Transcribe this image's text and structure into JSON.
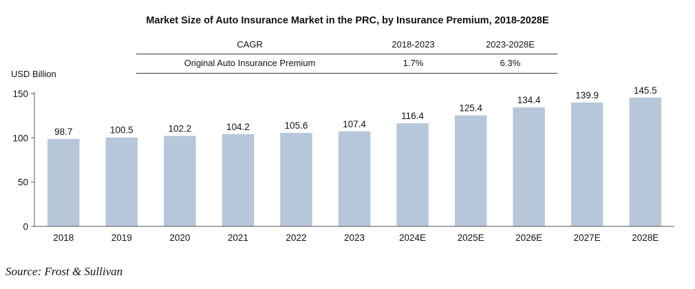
{
  "colors": {
    "bar": "#b7c7da",
    "axis": "#555555",
    "text": "#111111"
  },
  "source": "Source: Frost & Sullivan",
  "cagr": {
    "header": {
      "label": "CAGR",
      "p1": "2018-2023",
      "p2": "2023-2028E"
    },
    "row": {
      "label": "Original Auto Insurance Premium",
      "p1": "1.7%",
      "p2": "6.3%"
    }
  },
  "chart_data": {
    "type": "bar",
    "title": "Market Size of Auto Insurance Market in the PRC, by Insurance Premium, 2018-2028E",
    "ylabel": "USD Billion",
    "xlabel": "",
    "categories": [
      "2018",
      "2019",
      "2020",
      "2021",
      "2022",
      "2023",
      "2024E",
      "2025E",
      "2026E",
      "2027E",
      "2028E"
    ],
    "values": [
      98.7,
      100.5,
      102.2,
      104.2,
      105.6,
      107.4,
      116.4,
      125.4,
      134.4,
      139.9,
      145.5
    ],
    "ylim": [
      0,
      150
    ],
    "yticks": [
      0,
      50,
      100,
      150
    ],
    "grid": false,
    "legend": "none"
  }
}
